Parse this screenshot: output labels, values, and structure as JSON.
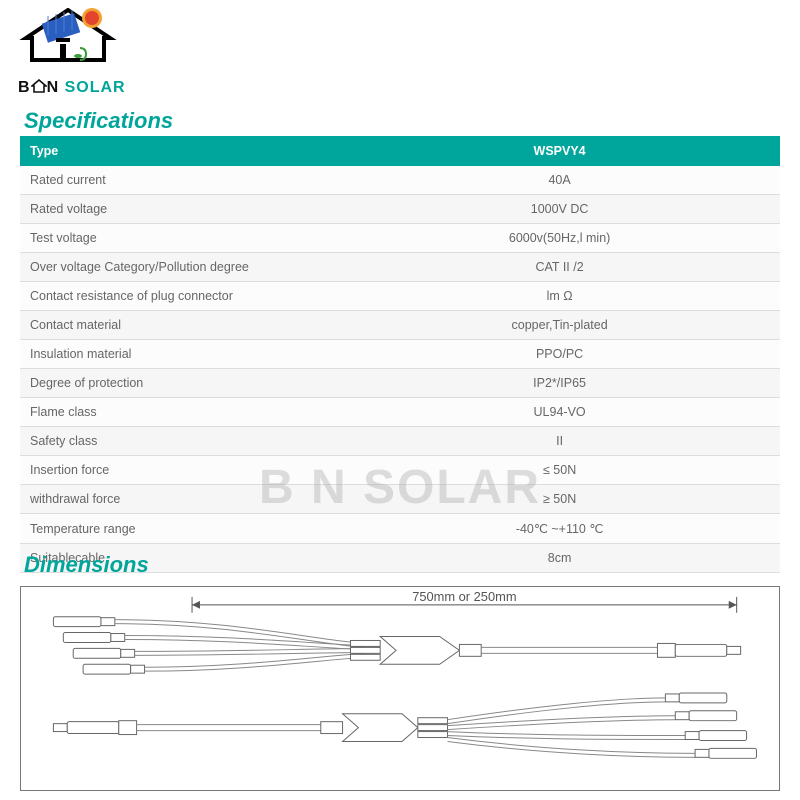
{
  "brand": {
    "prefix": "B",
    "mid": "N",
    "suffix": "SOLAR"
  },
  "watermark_text": "B   N SOLAR",
  "specifications": {
    "heading": "Specifications",
    "header": {
      "type": "Type",
      "model": "WSPVY4"
    },
    "rows": [
      {
        "label": "Rated current",
        "value": "40A"
      },
      {
        "label": "Rated voltage",
        "value": "1000V DC"
      },
      {
        "label": "Test voltage",
        "value": "6000v(50Hz,l min)"
      },
      {
        "label": "Over voltage Category/Pollution degree",
        "value": "CAT II /2"
      },
      {
        "label": "Contact resistance of plug connector",
        "value": "lm Ω"
      },
      {
        "label": "Contact material",
        "value": "copper,Tin-plated"
      },
      {
        "label": "Insulation material",
        "value": "PPO/PC"
      },
      {
        "label": "Degree of protection",
        "value": "IP2*/IP65"
      },
      {
        "label": "Flame class",
        "value": "UL94-VO"
      },
      {
        "label": "Safety class",
        "value": "II"
      },
      {
        "label": "Insertion force",
        "value": "≤ 50N"
      },
      {
        "label": "withdrawal force",
        "value": "≥ 50N"
      },
      {
        "label": "Temperature range",
        "value": "-40℃ ~+110 ℃"
      },
      {
        "label": "Suitablecable",
        "value": "8cm"
      }
    ]
  },
  "dimensions": {
    "heading": "Dimensions",
    "length_label": "750mm or 250mm"
  },
  "colors": {
    "accent": "#00a59b",
    "row_even": "#f6f6f6",
    "row_odd": "#fcfcfc",
    "border": "#dddddd",
    "text": "#666666"
  }
}
